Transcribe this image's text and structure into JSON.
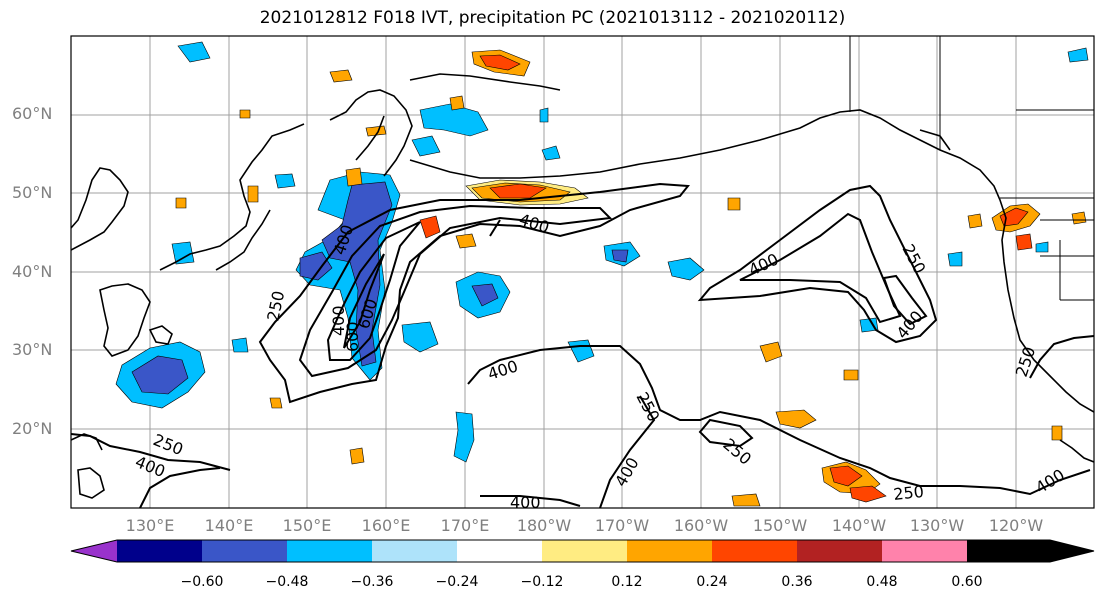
{
  "title": "2021012812 F018 IVT, precipitation PC (2021013112 - 2021020112)",
  "latitude_labels": [
    "60°N",
    "50°N",
    "40°N",
    "30°N",
    "20°N"
  ],
  "longitude_labels": [
    "130°E",
    "140°E",
    "150°E",
    "160°E",
    "170°E",
    "180°W",
    "170°W",
    "160°W",
    "150°W",
    "140°W",
    "130°W",
    "120°W"
  ],
  "contour_labels": [
    "400",
    "400",
    "400",
    "250",
    "250",
    "400",
    "250",
    "250",
    "400",
    "250",
    "400",
    "400",
    "250",
    "400",
    "400",
    "600",
    "400",
    "600",
    "250"
  ],
  "colorbar": {
    "ticks": [
      "−0.60",
      "−0.48",
      "−0.36",
      "−0.24",
      "−0.12",
      "0.12",
      "0.24",
      "0.36",
      "0.48",
      "0.60"
    ],
    "colors": [
      "#9932cc",
      "#00008b",
      "#3a56c8",
      "#00bfff",
      "#aee3fa",
      "#ffffff",
      "#ffec82",
      "#ffa500",
      "#ff4500",
      "#b22222",
      "#ff82ab"
    ]
  }
}
